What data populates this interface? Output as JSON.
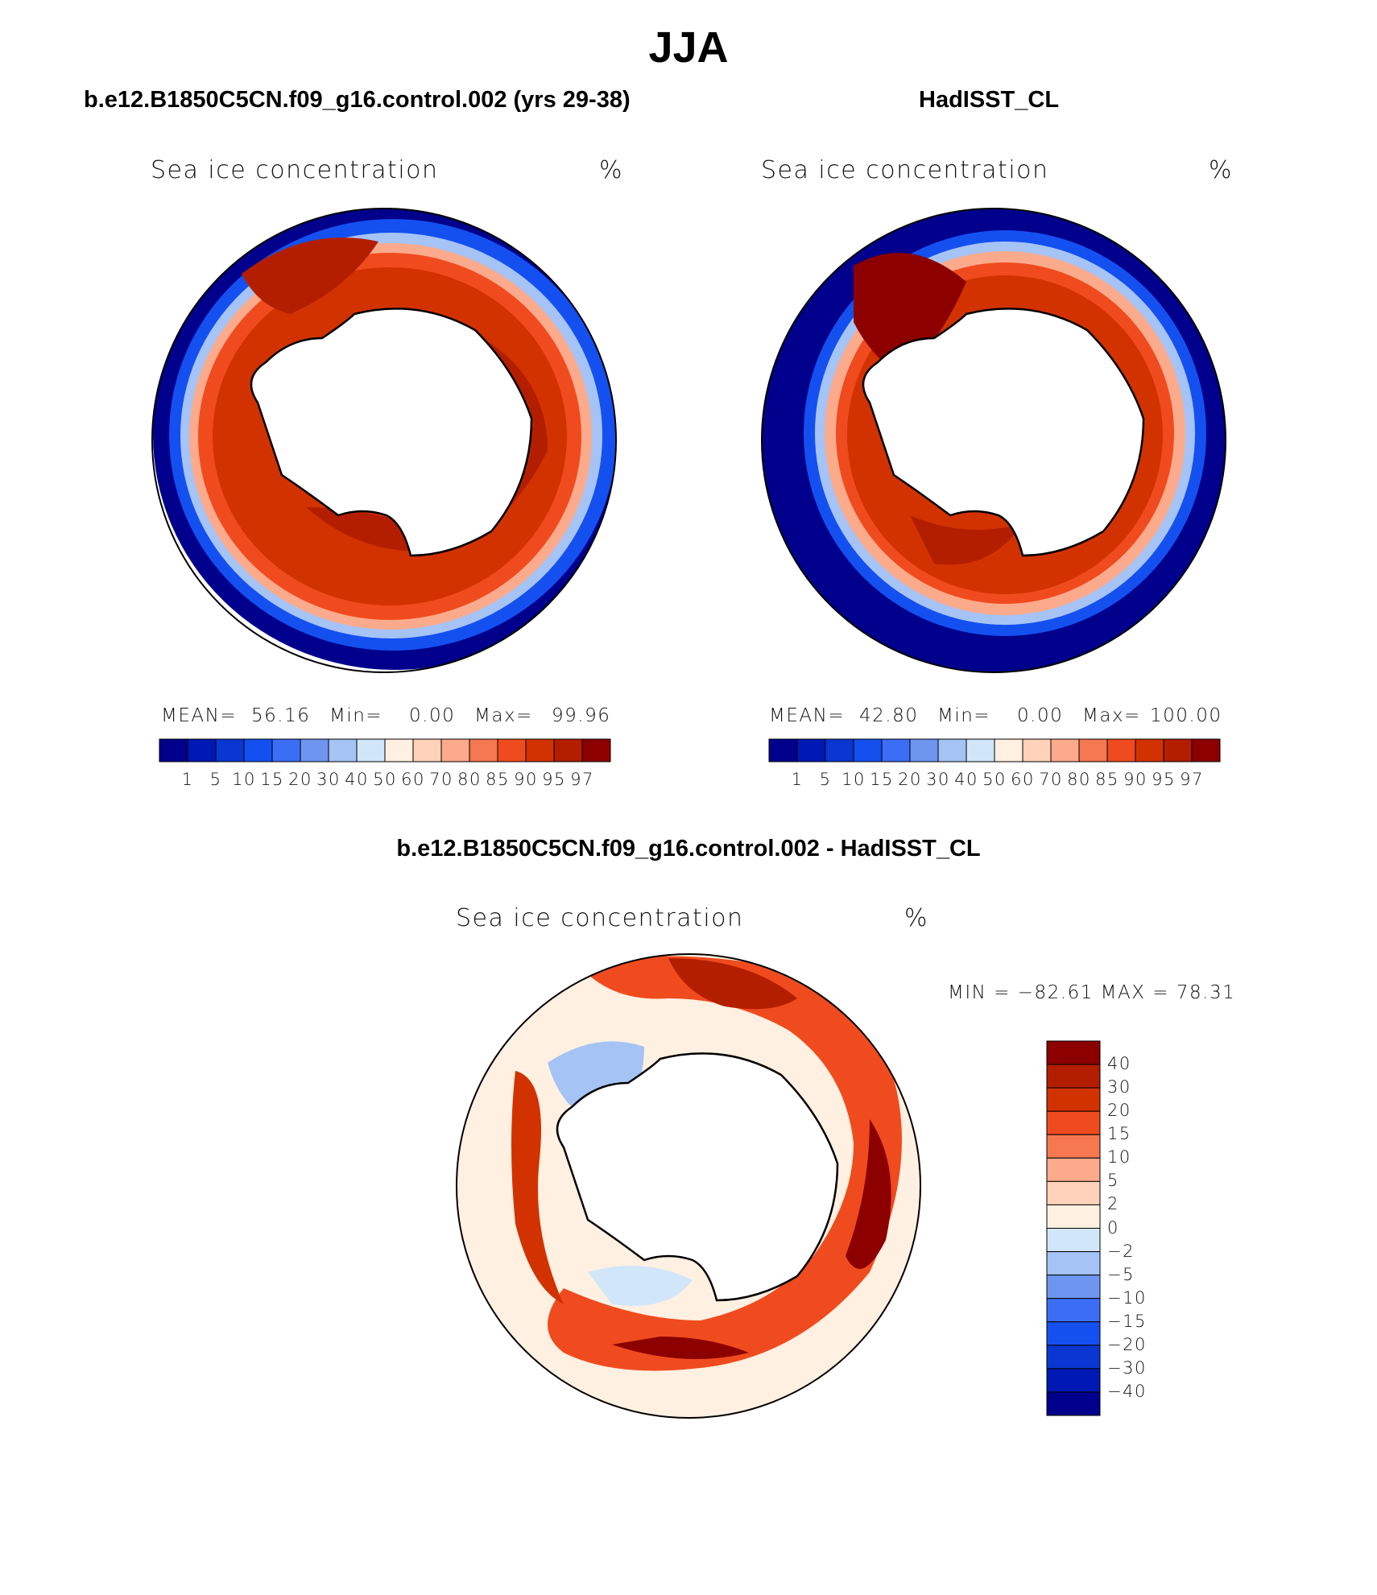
{
  "figure": {
    "title": "JJA"
  },
  "panels": [
    {
      "id": "model",
      "title": "b.e12.B1850C5CN.f09_g16.control.002 (yrs 29-38)",
      "variable": "Sea ice concentration",
      "units": "%",
      "stats": {
        "mean_label": "MEAN=",
        "mean": "56.16",
        "min_label": "Min=",
        "min": "0.00",
        "max_label": "Max=",
        "max": "99.96"
      }
    },
    {
      "id": "obs",
      "title": "HadISST_CL",
      "variable": "Sea ice concentration",
      "units": "%",
      "stats": {
        "mean_label": "MEAN=",
        "mean": "42.80",
        "min_label": "Min=",
        "min": "0.00",
        "max_label": "Max=",
        "max": "100.00"
      }
    },
    {
      "id": "diff",
      "title": "b.e12.B1850C5CN.f09_g16.control.002 - HadISST_CL",
      "variable": "Sea ice concentration",
      "units": "%",
      "minmax": "MIN = −82.61 MAX =   78.31"
    }
  ],
  "chart_data": [
    {
      "type": "heatmap",
      "projection": "south polar stereographic",
      "title": "b.e12.B1850C5CN.f09_g16.control.002 (yrs 29-38)",
      "variable": "Sea ice concentration",
      "units": "%",
      "mean": 56.16,
      "min": 0.0,
      "max": 99.96,
      "colorbar_levels": [
        1,
        5,
        10,
        15,
        20,
        30,
        40,
        50,
        60,
        70,
        80,
        85,
        90,
        95,
        97
      ],
      "colorbar_colors": [
        "#00008c",
        "#0019b4",
        "#0a37d2",
        "#1450f0",
        "#3c6ef5",
        "#6e96f0",
        "#a5c3f5",
        "#d2e6fa",
        "#fff0e1",
        "#ffd2b9",
        "#fcaa8c",
        "#f57850",
        "#f04b1e",
        "#d23200",
        "#b41e00",
        "#8c0000"
      ],
      "colorbar_tick_labels": [
        "1",
        "5",
        "10",
        "15",
        "20",
        "30",
        "40",
        "50",
        "60",
        "70",
        "80",
        "85",
        "90",
        "95",
        "97"
      ]
    },
    {
      "type": "heatmap",
      "projection": "south polar stereographic",
      "title": "HadISST_CL",
      "variable": "Sea ice concentration",
      "units": "%",
      "mean": 42.8,
      "min": 0.0,
      "max": 100.0,
      "colorbar_levels": [
        1,
        5,
        10,
        15,
        20,
        30,
        40,
        50,
        60,
        70,
        80,
        85,
        90,
        95,
        97
      ],
      "colorbar_colors": [
        "#00008c",
        "#0019b4",
        "#0a37d2",
        "#1450f0",
        "#3c6ef5",
        "#6e96f0",
        "#a5c3f5",
        "#d2e6fa",
        "#fff0e1",
        "#ffd2b9",
        "#fcaa8c",
        "#f57850",
        "#f04b1e",
        "#d23200",
        "#b41e00",
        "#8c0000"
      ],
      "colorbar_tick_labels": [
        "1",
        "5",
        "10",
        "15",
        "20",
        "30",
        "40",
        "50",
        "60",
        "70",
        "80",
        "85",
        "90",
        "95",
        "97"
      ]
    },
    {
      "type": "heatmap",
      "projection": "south polar stereographic",
      "title": "b.e12.B1850C5CN.f09_g16.control.002 - HadISST_CL",
      "variable": "Sea ice concentration",
      "units": "%",
      "min": -82.61,
      "max": 78.31,
      "colorbar_levels": [
        40,
        30,
        20,
        15,
        10,
        5,
        2,
        0,
        -2,
        -5,
        -10,
        -15,
        -20,
        -30,
        -40
      ],
      "colorbar_tick_labels": [
        "40",
        "30",
        "20",
        "15",
        "10",
        "5",
        "2",
        "0",
        "−2",
        "−5",
        "−10",
        "−15",
        "−20",
        "−30",
        "−40"
      ],
      "colorbar_colors": [
        "#8c0000",
        "#b41e00",
        "#d23200",
        "#f04b1e",
        "#f57850",
        "#fcaa8c",
        "#ffd2b9",
        "#fff0e1",
        "#d2e6fa",
        "#a5c3f5",
        "#6e96f0",
        "#3c6ef5",
        "#1450f0",
        "#0a37d2",
        "#0019b4",
        "#00008c"
      ]
    }
  ]
}
